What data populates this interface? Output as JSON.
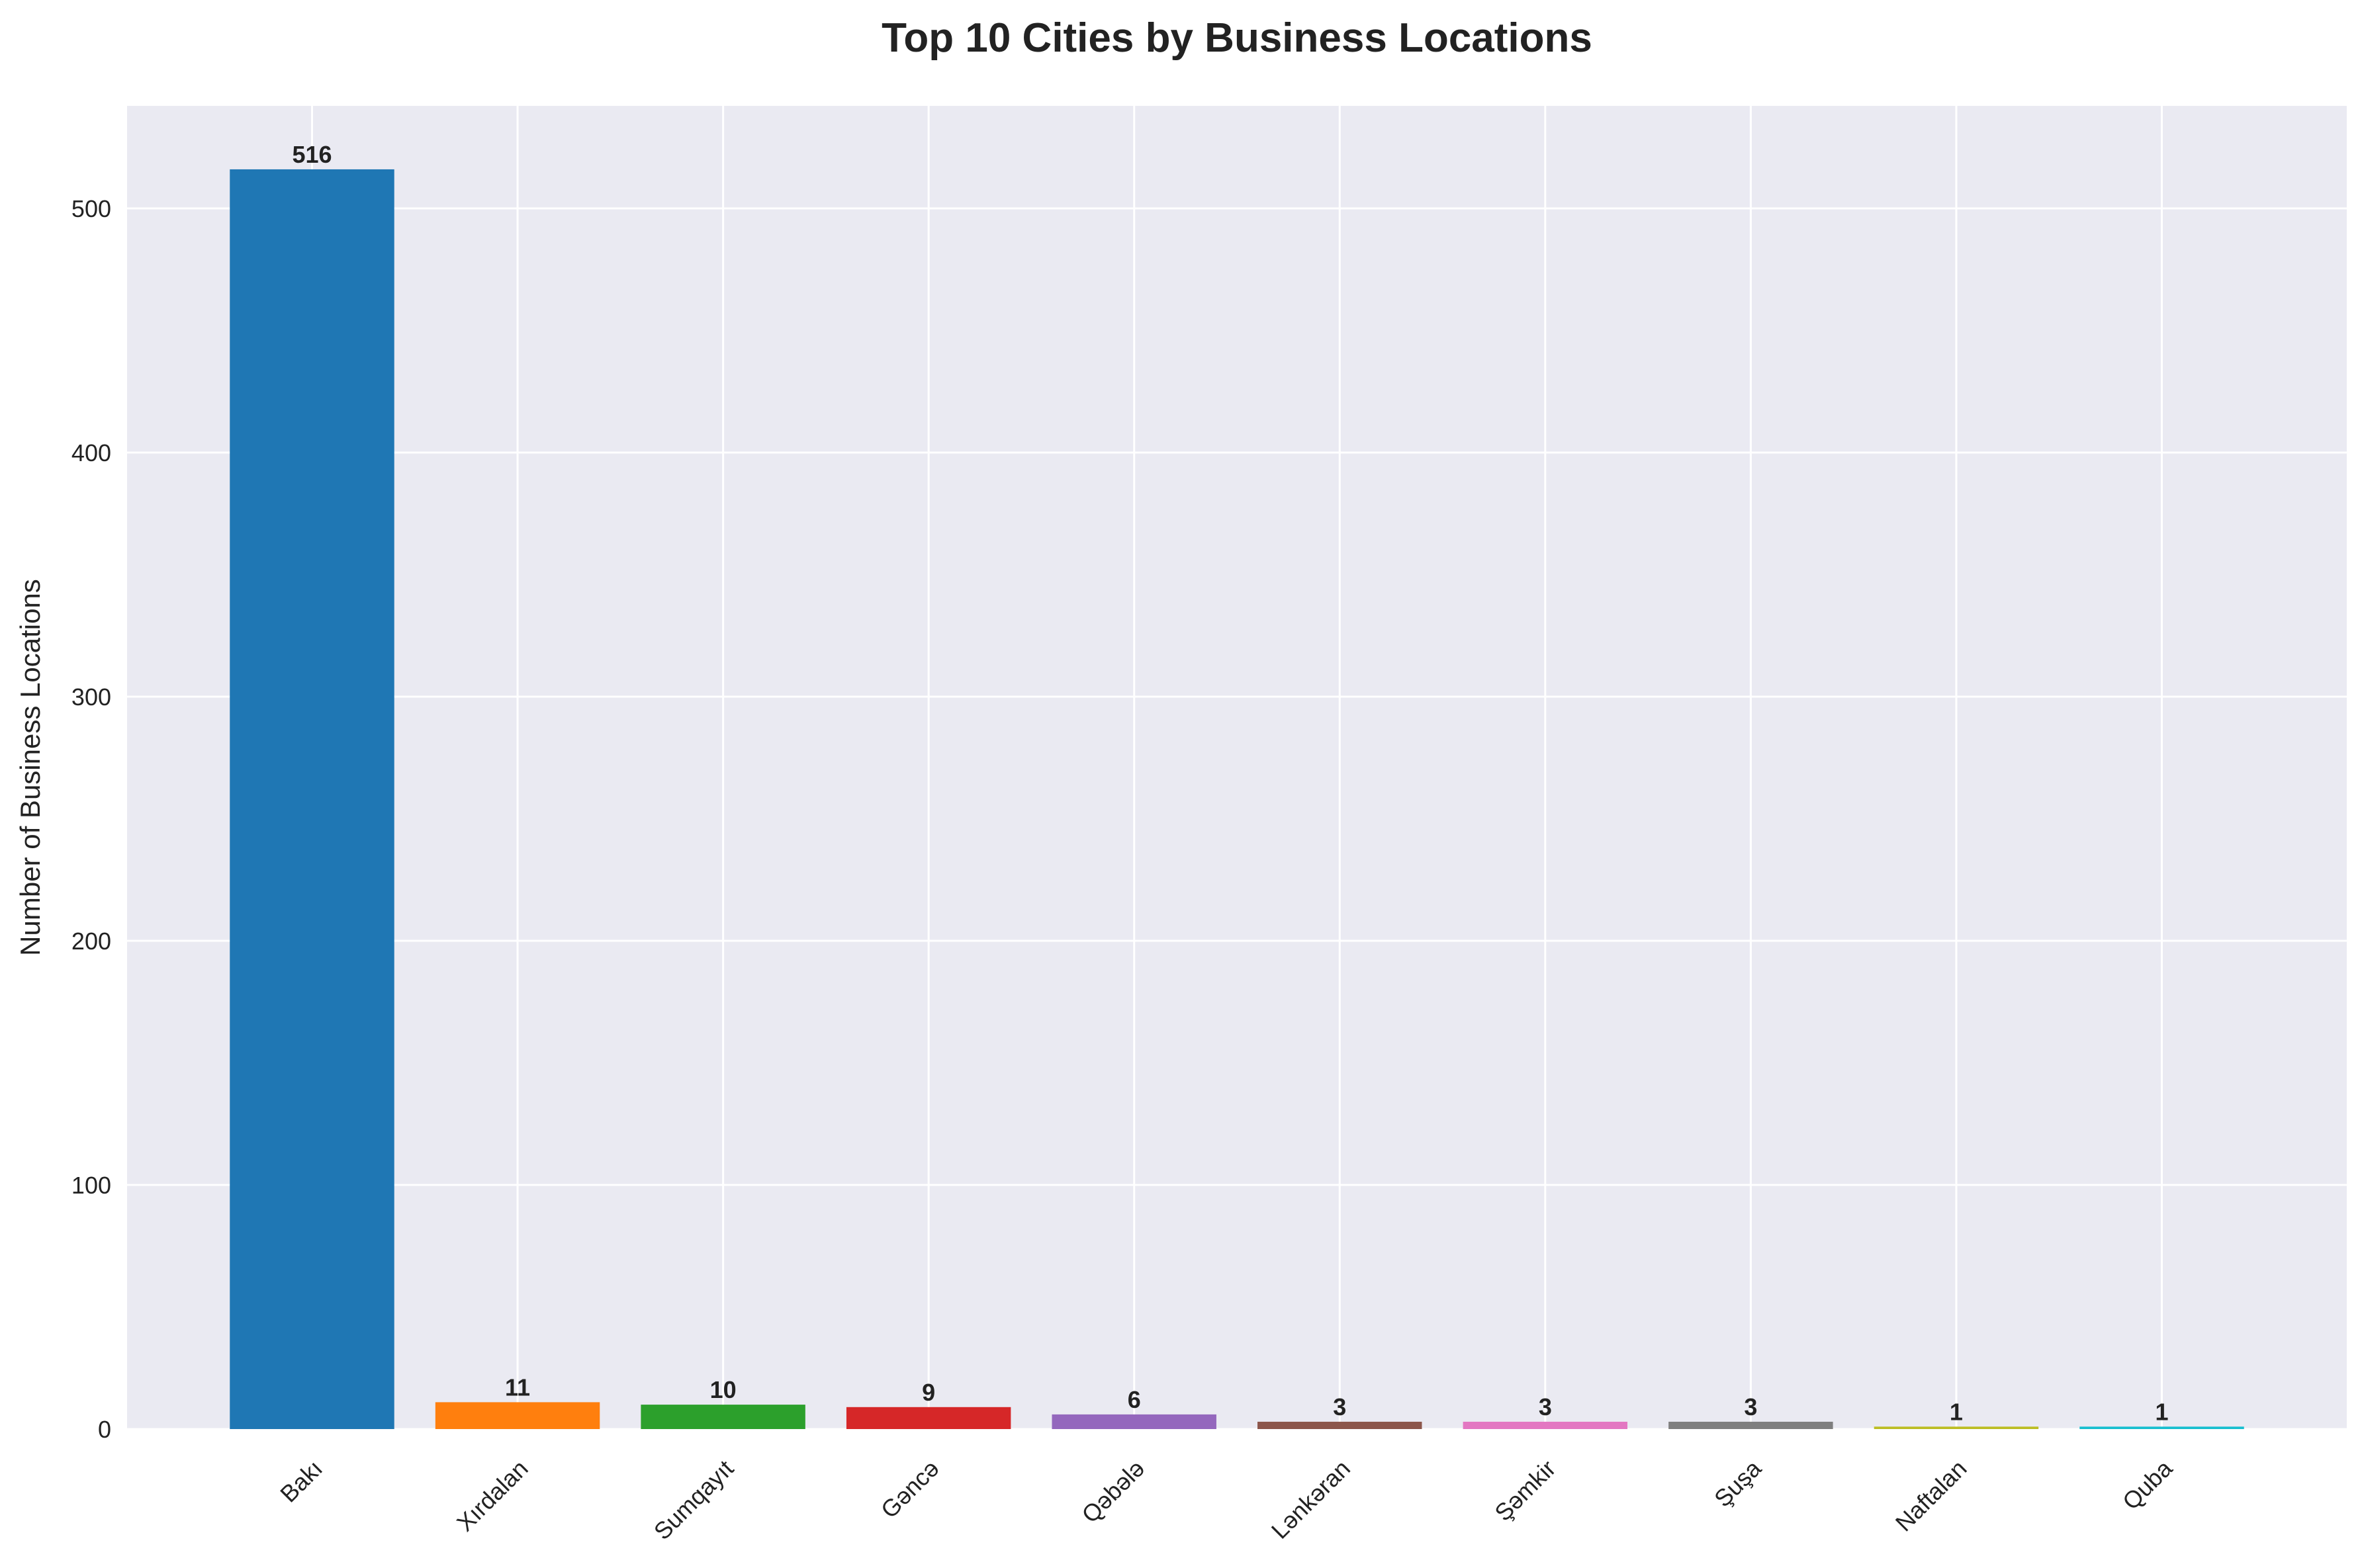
{
  "chart_data": {
    "type": "bar",
    "title": "Top 10 Cities by Business Locations",
    "xlabel": "",
    "ylabel": "Number of Business Locations",
    "categories": [
      "Bakı",
      "Xırdalan",
      "Sumqayıt",
      "Gəncə",
      "Qəbələ",
      "Lənkəran",
      "Şəmkir",
      "Şuşa",
      "Naftalan",
      "Quba"
    ],
    "values": [
      516,
      11,
      10,
      9,
      6,
      3,
      3,
      3,
      1,
      1
    ],
    "data_labels": [
      "516",
      "11",
      "10",
      "9",
      "6",
      "3",
      "3",
      "3",
      "1",
      "1"
    ],
    "colors": [
      "#1f77b4",
      "#ff7f0e",
      "#2ca02c",
      "#d62728",
      "#9467bd",
      "#8c564b",
      "#e377c2",
      "#7f7f7f",
      "#bcbd22",
      "#17becf"
    ],
    "ylim": [
      0,
      542
    ],
    "yticks": [
      0,
      100,
      200,
      300,
      400,
      500
    ],
    "ytick_labels": [
      "0",
      "100",
      "200",
      "300",
      "400",
      "500"
    ],
    "grid": true,
    "background": "#eaeaf2",
    "grid_color": "#ffffff",
    "x_tick_rotation_deg": 45
  }
}
